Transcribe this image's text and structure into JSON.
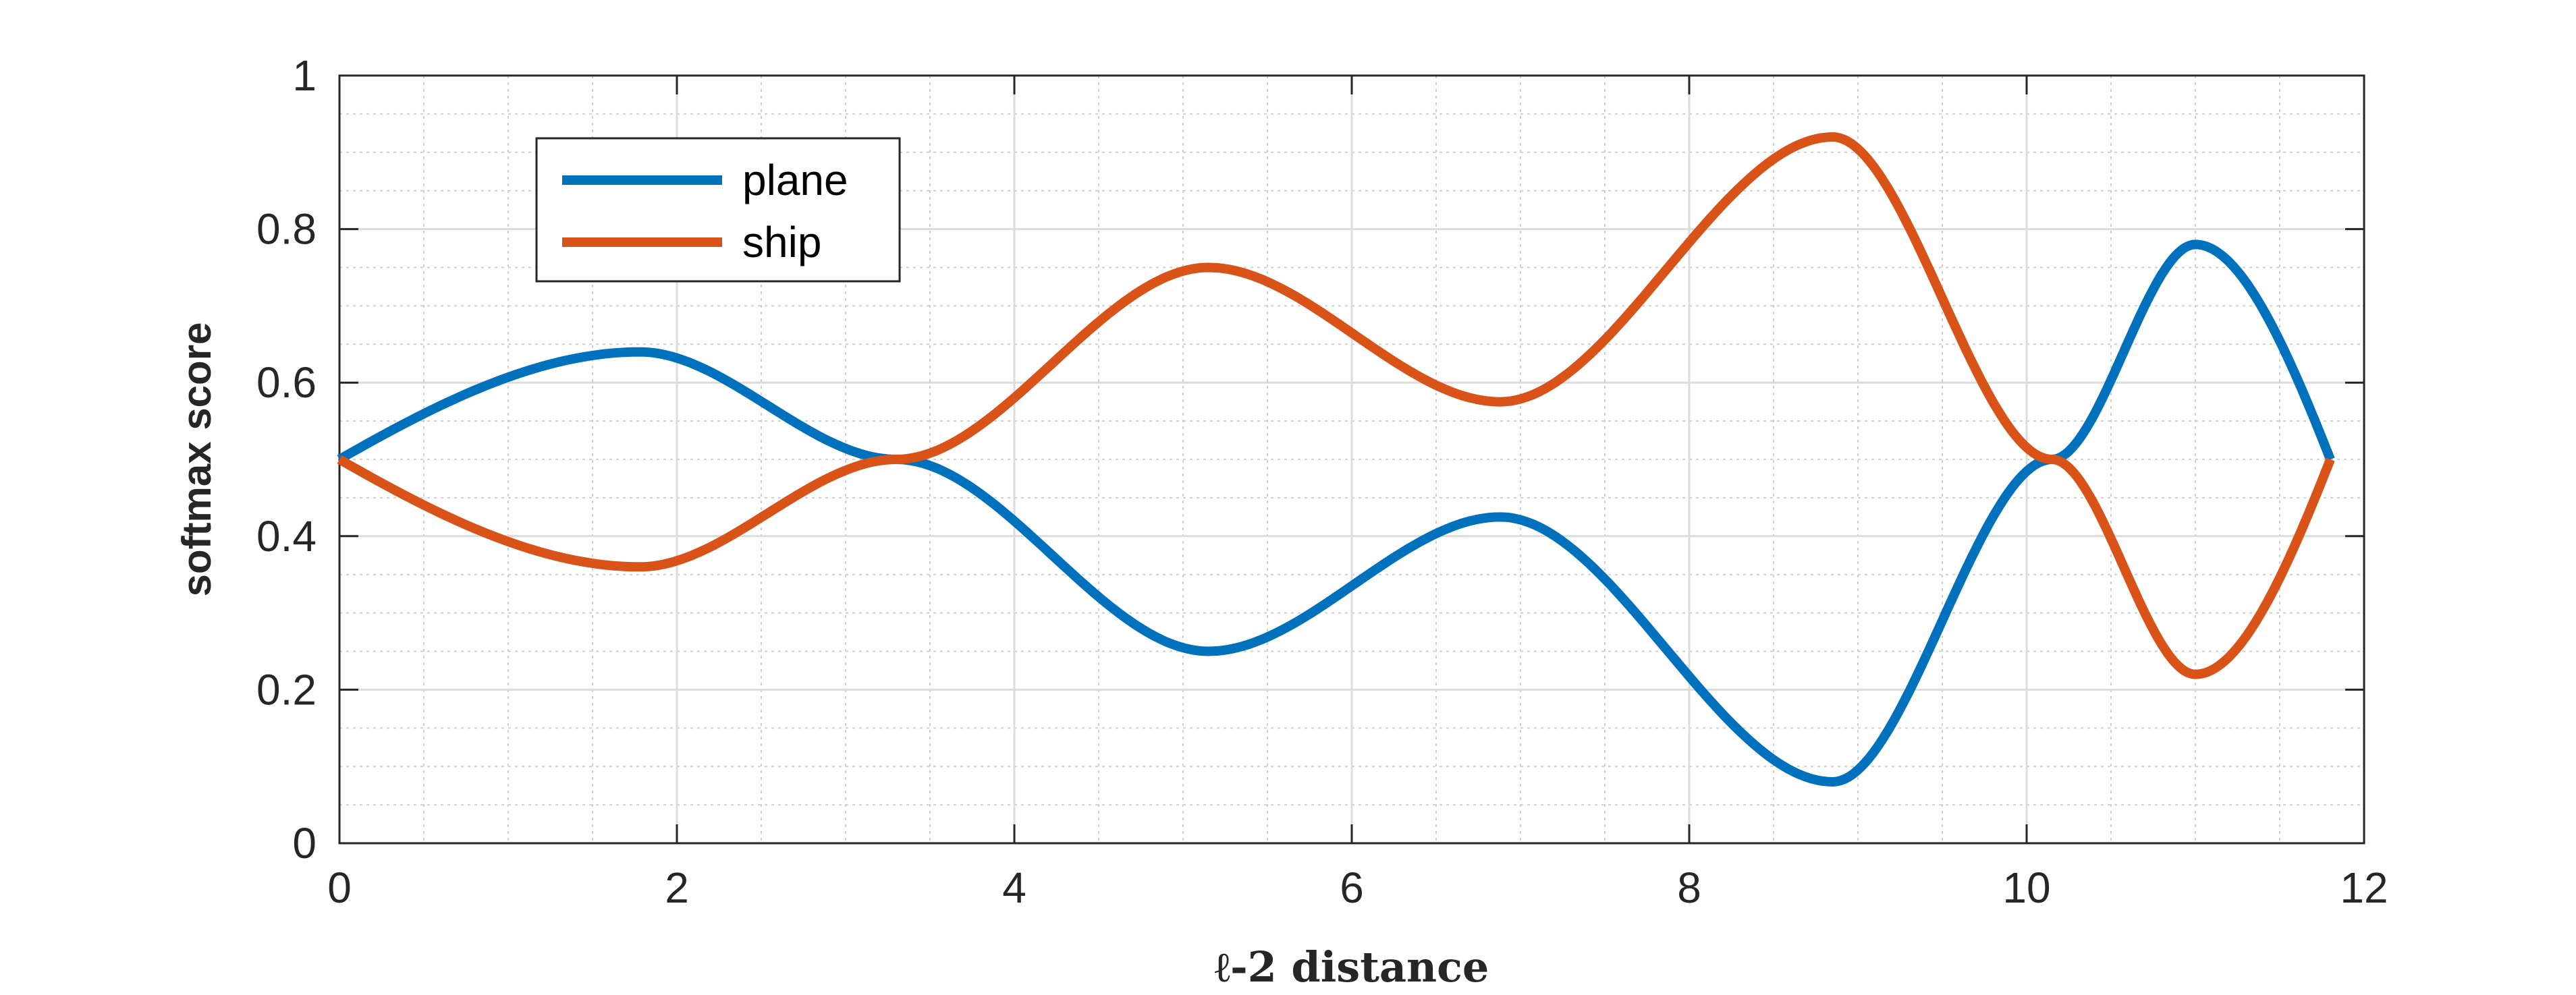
{
  "chart_data": {
    "type": "line",
    "xlabel": "ℓ-2 distance",
    "ylabel": "softmax score",
    "xlim": [
      0,
      12
    ],
    "ylim": [
      0,
      1
    ],
    "x_ticks": [
      "0",
      "2",
      "4",
      "6",
      "8",
      "10",
      "12"
    ],
    "y_ticks": [
      "0",
      "0.2",
      "0.4",
      "0.6",
      "0.8",
      "1"
    ],
    "grid": true,
    "minor_grid": true,
    "legend_position": "top-left",
    "series": [
      {
        "name": "plane",
        "color": "#0072BD",
        "x": [
          0,
          1.78,
          3.3,
          5.15,
          6.88,
          8.85,
          10.15,
          11.0,
          11.8
        ],
        "y": [
          0.5,
          0.64,
          0.5,
          0.25,
          0.425,
          0.08,
          0.5,
          0.78,
          0.5
        ]
      },
      {
        "name": "ship",
        "color": "#D95319",
        "x": [
          0,
          1.78,
          3.3,
          5.15,
          6.88,
          8.85,
          10.15,
          11.0,
          11.8
        ],
        "y": [
          0.5,
          0.36,
          0.5,
          0.75,
          0.575,
          0.92,
          0.5,
          0.22,
          0.5
        ]
      }
    ]
  }
}
